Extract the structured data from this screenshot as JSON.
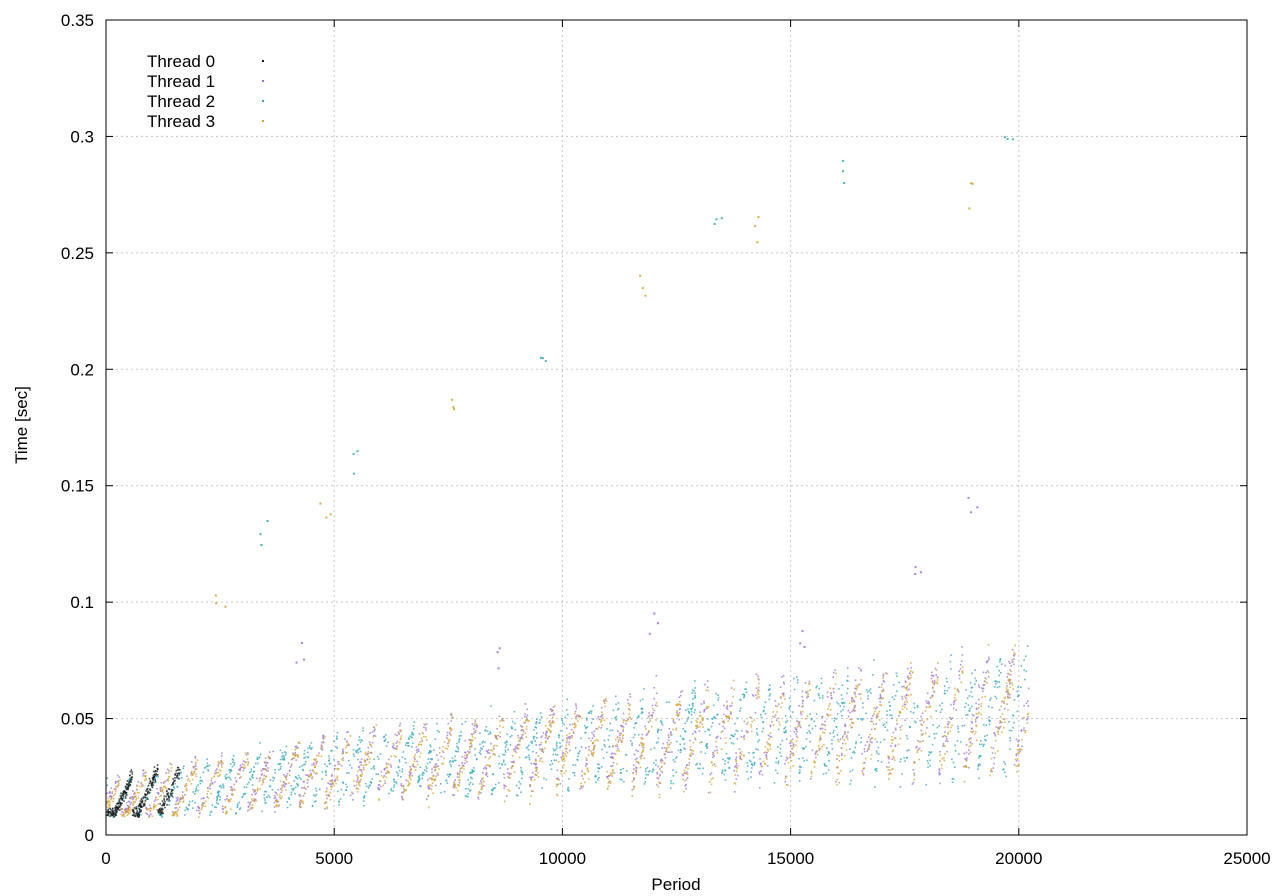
{
  "chart_data": {
    "type": "scatter",
    "xlabel": "Period",
    "ylabel": "Time [sec]",
    "xlim": [
      0,
      25000
    ],
    "ylim": [
      0,
      0.35
    ],
    "x_ticks": [
      0,
      5000,
      10000,
      15000,
      20000,
      25000
    ],
    "y_ticks": [
      0,
      0.05,
      0.1,
      0.15,
      0.2,
      0.25,
      0.3,
      0.35
    ],
    "x_tick_labels": [
      "0",
      "5000",
      "10000",
      "15000",
      "20000",
      "25000"
    ],
    "y_tick_labels": [
      "0",
      "0.05",
      "0.1",
      "0.15",
      "0.2",
      "0.25",
      "0.3",
      "0.35"
    ],
    "grid": true,
    "legend_position": "top-left",
    "point_count_per_series": 20200,
    "series": [
      {
        "name": "Thread 0",
        "color": "#1a1a1a",
        "x_range": [
          0,
          1600
        ],
        "trend": [
          [
            0,
            0.011
          ],
          [
            1600,
            0.02
          ]
        ]
      },
      {
        "name": "Thread 1",
        "color": "#9b6fd6",
        "trend": [
          [
            0,
            0.014
          ],
          [
            5000,
            0.028
          ],
          [
            10000,
            0.037
          ],
          [
            15000,
            0.045
          ],
          [
            20000,
            0.052
          ]
        ],
        "outliers": [
          [
            4200,
            0.08
          ],
          [
            8500,
            0.075
          ],
          [
            12000,
            0.09
          ],
          [
            15200,
            0.085
          ],
          [
            17800,
            0.11
          ],
          [
            19000,
            0.14
          ]
        ]
      },
      {
        "name": "Thread 2",
        "color": "#2ea6b8",
        "trend": [
          [
            0,
            0.013
          ],
          [
            5000,
            0.027
          ],
          [
            10000,
            0.036
          ],
          [
            15000,
            0.044
          ],
          [
            20000,
            0.05
          ]
        ],
        "outliers": [
          [
            3400,
            0.13
          ],
          [
            5400,
            0.16
          ],
          [
            9600,
            0.205
          ],
          [
            13400,
            0.265
          ],
          [
            16200,
            0.285
          ],
          [
            19800,
            0.305
          ]
        ]
      },
      {
        "name": "Thread 3",
        "color": "#d4a12a",
        "trend": [
          [
            0,
            0.012
          ],
          [
            5000,
            0.027
          ],
          [
            10000,
            0.036
          ],
          [
            15000,
            0.043
          ],
          [
            20000,
            0.05
          ]
        ],
        "outliers": [
          [
            2500,
            0.1
          ],
          [
            4800,
            0.14
          ],
          [
            7600,
            0.185
          ],
          [
            11800,
            0.235
          ],
          [
            14300,
            0.26
          ],
          [
            18900,
            0.275
          ]
        ]
      }
    ]
  }
}
